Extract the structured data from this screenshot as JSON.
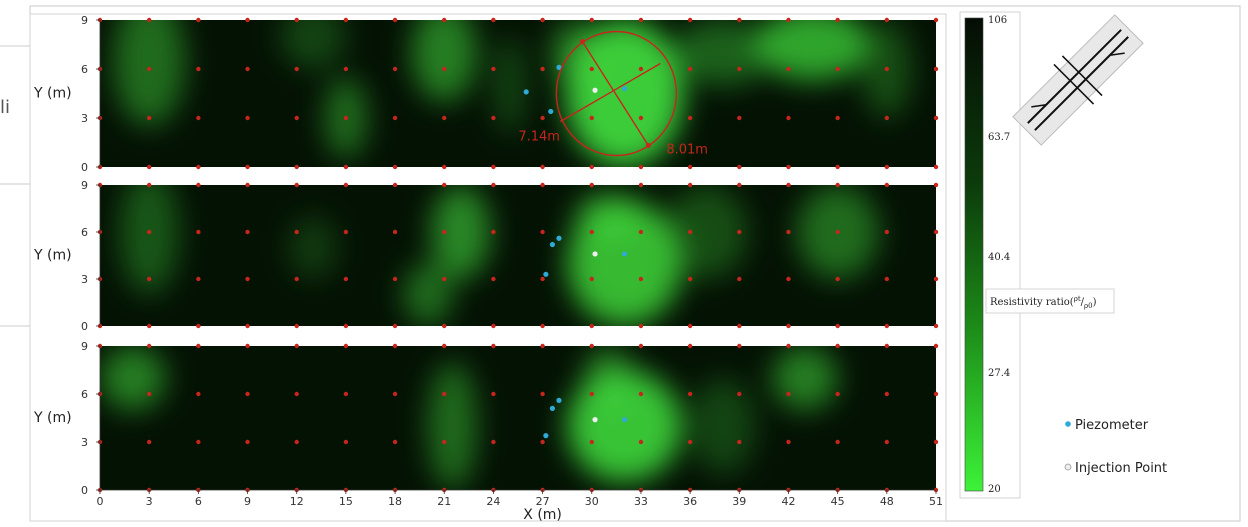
{
  "chart_data": {
    "type": "heatmap",
    "xlabel": "X (m)",
    "ylabel": "Y (m)",
    "x_ticks": [
      "0",
      "3",
      "6",
      "9",
      "12",
      "15",
      "18",
      "21",
      "24",
      "27",
      "30",
      "33",
      "36",
      "39",
      "42",
      "45",
      "48",
      "51"
    ],
    "y_ticks": [
      "0",
      "3",
      "6",
      "9"
    ],
    "xlim": [
      0,
      51
    ],
    "ylim": [
      0,
      9
    ],
    "panels": [
      {
        "ylabel": "Y (m)",
        "blobs": [
          {
            "x": 3,
            "y": 6.5,
            "rx": 2.2,
            "ry": 4,
            "v": 0.45
          },
          {
            "x": 13,
            "y": 8,
            "rx": 2,
            "ry": 2,
            "v": 0.25
          },
          {
            "x": 15,
            "y": 3,
            "rx": 1.3,
            "ry": 2.5,
            "v": 0.45
          },
          {
            "x": 21,
            "y": 7,
            "rx": 2,
            "ry": 3,
            "v": 0.55
          },
          {
            "x": 25,
            "y": 5,
            "rx": 1,
            "ry": 3,
            "v": 0.25
          },
          {
            "x": 32,
            "y": 4.5,
            "rx": 3.6,
            "ry": 4.5,
            "v": 0.95
          },
          {
            "x": 29,
            "y": 7,
            "rx": 1.5,
            "ry": 2,
            "v": 0.5
          },
          {
            "x": 43.5,
            "y": 7.5,
            "rx": 3.5,
            "ry": 2.2,
            "v": 0.75
          },
          {
            "x": 38,
            "y": 7,
            "rx": 3,
            "ry": 2,
            "v": 0.4
          },
          {
            "x": 48,
            "y": 6,
            "rx": 1.5,
            "ry": 3,
            "v": 0.3
          }
        ]
      },
      {
        "ylabel": "Y (m)",
        "blobs": [
          {
            "x": 3,
            "y": 6,
            "rx": 1.8,
            "ry": 4,
            "v": 0.35
          },
          {
            "x": 13,
            "y": 5,
            "rx": 1.5,
            "ry": 2,
            "v": 0.2
          },
          {
            "x": 22,
            "y": 6,
            "rx": 1.8,
            "ry": 3,
            "v": 0.6
          },
          {
            "x": 20,
            "y": 2,
            "rx": 1.5,
            "ry": 2,
            "v": 0.45
          },
          {
            "x": 32,
            "y": 4,
            "rx": 3.5,
            "ry": 4,
            "v": 0.85
          },
          {
            "x": 31,
            "y": 7,
            "rx": 2,
            "ry": 1.5,
            "v": 0.6
          },
          {
            "x": 37,
            "y": 6,
            "rx": 2.5,
            "ry": 3,
            "v": 0.3
          },
          {
            "x": 45,
            "y": 6,
            "rx": 2.5,
            "ry": 3,
            "v": 0.45
          }
        ]
      },
      {
        "ylabel": "Y (m)",
        "blobs": [
          {
            "x": 2,
            "y": 7,
            "rx": 2,
            "ry": 2,
            "v": 0.55
          },
          {
            "x": 21.5,
            "y": 4,
            "rx": 1.5,
            "ry": 4,
            "v": 0.45
          },
          {
            "x": 32,
            "y": 4,
            "rx": 3.5,
            "ry": 3.5,
            "v": 0.9
          },
          {
            "x": 31,
            "y": 7,
            "rx": 1.5,
            "ry": 2,
            "v": 0.5
          },
          {
            "x": 38,
            "y": 4,
            "rx": 2,
            "ry": 3,
            "v": 0.25
          },
          {
            "x": 43,
            "y": 7,
            "rx": 2,
            "ry": 2,
            "v": 0.55
          }
        ]
      }
    ],
    "electrodes": {
      "x": [
        0,
        3,
        6,
        9,
        12,
        15,
        18,
        21,
        24,
        27,
        30,
        33,
        36,
        39,
        42,
        45,
        48,
        51
      ],
      "y": [
        0,
        3,
        6,
        9
      ]
    },
    "piezometers": [
      [
        {
          "x": 28,
          "y": 6.1
        },
        {
          "x": 27.5,
          "y": 3.4
        },
        {
          "x": 32,
          "y": 4.8
        },
        {
          "x": 26,
          "y": 4.6
        }
      ],
      [
        {
          "x": 28,
          "y": 5.6
        },
        {
          "x": 27.6,
          "y": 5.2
        },
        {
          "x": 27.2,
          "y": 3.3
        },
        {
          "x": 32,
          "y": 4.6
        }
      ],
      [
        {
          "x": 28,
          "y": 5.6
        },
        {
          "x": 27.6,
          "y": 5.1
        },
        {
          "x": 27.2,
          "y": 3.4
        },
        {
          "x": 32,
          "y": 4.4
        }
      ]
    ],
    "injection_points": [
      {
        "x": 30.2,
        "y": 4.7
      },
      {
        "x": 30.2,
        "y": 4.6
      },
      {
        "x": 30.2,
        "y": 4.4
      }
    ],
    "annotation": {
      "center": {
        "x": 31.5,
        "y": 4.5
      },
      "label_a": "7.14m",
      "label_b": "8.01m"
    },
    "colorbar": {
      "ticks": [
        "106",
        "63.7",
        "40.4",
        "27.4",
        "20"
      ],
      "label": "Resistivity ratio(",
      "label_sup": "ρt",
      "label_sub": "ρ0",
      "label_end": ")",
      "color_high": "#050d05",
      "color_low": "#3df238"
    },
    "legend": [
      {
        "label": "Piezometer",
        "color": "#2fa9d6"
      },
      {
        "label": "Injection Point",
        "color": "#eeeeee"
      }
    ],
    "colors": {
      "electrode": "#c8251c",
      "background": "#041204",
      "plume": "#3fd63b",
      "annotation": "#c8251c"
    }
  },
  "stray_text": "li"
}
